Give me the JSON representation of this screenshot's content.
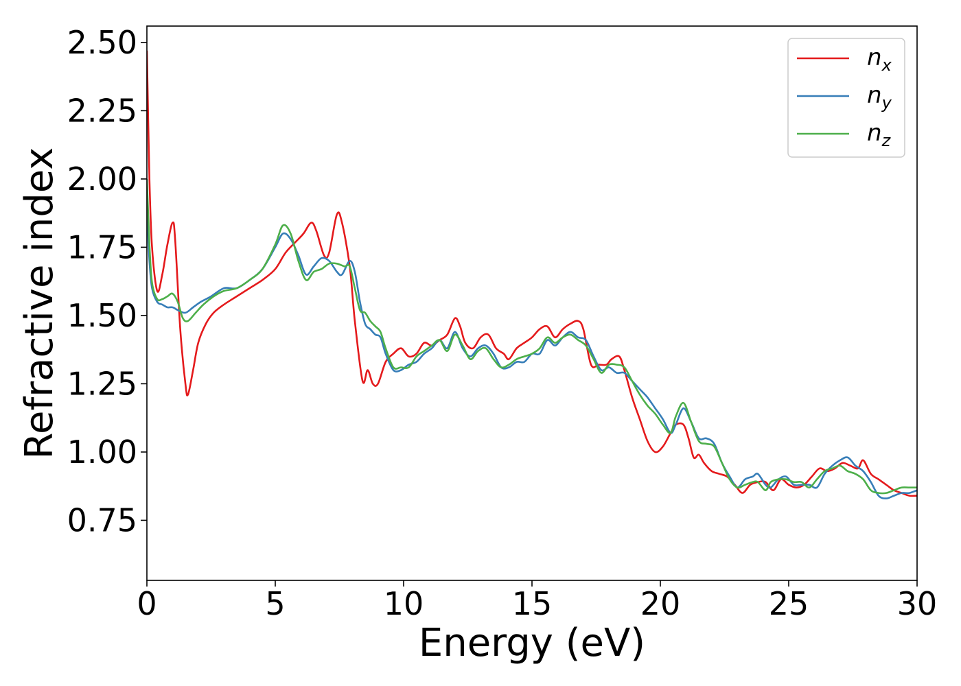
{
  "chart_data": {
    "type": "line",
    "xlabel": "Energy (eV)",
    "ylabel": "Refractive index",
    "xlim": [
      0,
      30
    ],
    "ylim": [
      0.53,
      2.56
    ],
    "xticks": [
      0,
      5,
      10,
      15,
      20,
      25,
      30
    ],
    "xtick_labels": [
      "0",
      "5",
      "10",
      "15",
      "20",
      "25",
      "30"
    ],
    "yticks": [
      0.75,
      1.0,
      1.25,
      1.5,
      1.75,
      2.0,
      2.25,
      2.5
    ],
    "ytick_labels": [
      "0.75",
      "1.00",
      "1.25",
      "1.50",
      "1.75",
      "2.00",
      "2.25",
      "2.50"
    ],
    "grid": false,
    "legend_position": "top-right",
    "series": [
      {
        "name": "n_x",
        "legend_base": "n",
        "legend_sub": "x",
        "color": "#e41a1c",
        "x": [
          0,
          0.1,
          0.2,
          0.4,
          0.6,
          0.8,
          1.0,
          1.1,
          1.3,
          1.5,
          1.6,
          1.8,
          2.0,
          2.3,
          2.6,
          3.0,
          3.5,
          4.0,
          4.5,
          5.0,
          5.4,
          5.8,
          6.1,
          6.4,
          6.6,
          6.9,
          7.1,
          7.4,
          7.6,
          7.9,
          8.1,
          8.4,
          8.6,
          8.8,
          9.0,
          9.3,
          9.6,
          9.9,
          10.2,
          10.5,
          10.8,
          11.1,
          11.4,
          11.7,
          12.0,
          12.2,
          12.4,
          12.7,
          13.0,
          13.3,
          13.6,
          13.9,
          14.1,
          14.4,
          14.7,
          15.0,
          15.3,
          15.6,
          15.9,
          16.2,
          16.5,
          16.8,
          17.0,
          17.3,
          17.6,
          17.9,
          18.1,
          18.4,
          18.6,
          18.9,
          19.2,
          19.5,
          19.8,
          20.1,
          20.4,
          20.6,
          20.9,
          21.1,
          21.3,
          21.5,
          21.7,
          22.0,
          22.3,
          22.6,
          22.9,
          23.2,
          23.5,
          23.8,
          24.1,
          24.4,
          24.7,
          25.0,
          25.3,
          25.6,
          25.9,
          26.2,
          26.5,
          26.8,
          27.1,
          27.4,
          27.7,
          27.9,
          28.2,
          28.5,
          28.8,
          29.1,
          29.4,
          29.7,
          30.0
        ],
        "y": [
          2.47,
          2.0,
          1.75,
          1.59,
          1.65,
          1.76,
          1.84,
          1.78,
          1.45,
          1.25,
          1.21,
          1.3,
          1.4,
          1.47,
          1.51,
          1.54,
          1.57,
          1.6,
          1.63,
          1.67,
          1.73,
          1.77,
          1.8,
          1.84,
          1.81,
          1.72,
          1.73,
          1.87,
          1.84,
          1.68,
          1.48,
          1.26,
          1.3,
          1.25,
          1.25,
          1.33,
          1.36,
          1.38,
          1.35,
          1.36,
          1.4,
          1.39,
          1.41,
          1.43,
          1.49,
          1.46,
          1.4,
          1.38,
          1.42,
          1.43,
          1.38,
          1.36,
          1.34,
          1.38,
          1.4,
          1.42,
          1.45,
          1.46,
          1.42,
          1.45,
          1.47,
          1.48,
          1.45,
          1.32,
          1.32,
          1.32,
          1.34,
          1.35,
          1.3,
          1.2,
          1.12,
          1.04,
          1.0,
          1.02,
          1.07,
          1.1,
          1.1,
          1.05,
          0.98,
          0.99,
          0.96,
          0.93,
          0.92,
          0.91,
          0.88,
          0.85,
          0.88,
          0.89,
          0.89,
          0.86,
          0.9,
          0.88,
          0.87,
          0.88,
          0.91,
          0.94,
          0.93,
          0.94,
          0.96,
          0.95,
          0.94,
          0.97,
          0.92,
          0.9,
          0.88,
          0.86,
          0.85,
          0.84,
          0.84
        ]
      },
      {
        "name": "n_y",
        "legend_base": "n",
        "legend_sub": "y",
        "color": "#377eb8",
        "x": [
          0,
          0.1,
          0.2,
          0.4,
          0.6,
          0.8,
          1.0,
          1.2,
          1.5,
          1.8,
          2.1,
          2.5,
          3.0,
          3.5,
          4.0,
          4.5,
          5.0,
          5.3,
          5.6,
          5.9,
          6.2,
          6.5,
          6.8,
          7.1,
          7.4,
          7.6,
          7.9,
          8.1,
          8.3,
          8.5,
          8.7,
          8.9,
          9.1,
          9.3,
          9.6,
          9.9,
          10.2,
          10.5,
          10.8,
          11.1,
          11.4,
          11.7,
          12.0,
          12.3,
          12.6,
          12.9,
          13.2,
          13.5,
          13.8,
          14.1,
          14.4,
          14.7,
          15.0,
          15.3,
          15.6,
          15.9,
          16.2,
          16.5,
          16.8,
          17.1,
          17.4,
          17.7,
          18.0,
          18.3,
          18.6,
          18.9,
          19.2,
          19.5,
          19.8,
          20.1,
          20.4,
          20.6,
          20.9,
          21.2,
          21.5,
          21.8,
          22.1,
          22.4,
          22.7,
          23.0,
          23.3,
          23.6,
          23.8,
          24.1,
          24.3,
          24.6,
          24.9,
          25.2,
          25.5,
          25.8,
          26.1,
          26.4,
          26.7,
          27.0,
          27.3,
          27.6,
          27.9,
          28.2,
          28.5,
          28.8,
          29.1,
          29.4,
          29.7,
          30.0
        ],
        "y": [
          1.9,
          1.7,
          1.6,
          1.55,
          1.54,
          1.53,
          1.53,
          1.52,
          1.51,
          1.53,
          1.55,
          1.57,
          1.6,
          1.6,
          1.63,
          1.67,
          1.75,
          1.8,
          1.78,
          1.72,
          1.65,
          1.68,
          1.71,
          1.7,
          1.66,
          1.65,
          1.7,
          1.66,
          1.55,
          1.47,
          1.45,
          1.43,
          1.42,
          1.36,
          1.3,
          1.3,
          1.32,
          1.33,
          1.36,
          1.38,
          1.41,
          1.38,
          1.44,
          1.38,
          1.35,
          1.38,
          1.39,
          1.36,
          1.31,
          1.31,
          1.33,
          1.33,
          1.36,
          1.36,
          1.41,
          1.39,
          1.42,
          1.44,
          1.42,
          1.41,
          1.35,
          1.3,
          1.31,
          1.29,
          1.29,
          1.26,
          1.23,
          1.2,
          1.16,
          1.12,
          1.07,
          1.1,
          1.16,
          1.11,
          1.05,
          1.05,
          1.03,
          0.96,
          0.91,
          0.87,
          0.9,
          0.91,
          0.92,
          0.88,
          0.87,
          0.9,
          0.91,
          0.88,
          0.88,
          0.88,
          0.87,
          0.92,
          0.95,
          0.97,
          0.98,
          0.95,
          0.93,
          0.89,
          0.84,
          0.83,
          0.84,
          0.85,
          0.85,
          0.86
        ]
      },
      {
        "name": "n_z",
        "legend_base": "n",
        "legend_sub": "z",
        "color": "#4daf4a",
        "x": [
          0,
          0.1,
          0.2,
          0.4,
          0.6,
          0.8,
          1.0,
          1.2,
          1.4,
          1.6,
          1.9,
          2.2,
          2.6,
          3.0,
          3.5,
          4.0,
          4.5,
          5.0,
          5.3,
          5.6,
          5.9,
          6.2,
          6.5,
          6.8,
          7.1,
          7.4,
          7.7,
          7.9,
          8.1,
          8.3,
          8.5,
          8.7,
          8.9,
          9.1,
          9.3,
          9.6,
          9.9,
          10.2,
          10.5,
          10.8,
          11.1,
          11.4,
          11.7,
          12.0,
          12.3,
          12.6,
          12.9,
          13.2,
          13.5,
          13.8,
          14.1,
          14.4,
          14.7,
          15.0,
          15.3,
          15.6,
          15.9,
          16.2,
          16.5,
          16.8,
          17.1,
          17.4,
          17.7,
          18.0,
          18.3,
          18.6,
          18.9,
          19.2,
          19.5,
          19.8,
          20.1,
          20.4,
          20.6,
          20.9,
          21.2,
          21.5,
          21.8,
          22.1,
          22.4,
          22.7,
          23.0,
          23.3,
          23.6,
          23.8,
          24.1,
          24.3,
          24.6,
          24.9,
          25.2,
          25.5,
          25.8,
          26.1,
          26.4,
          26.7,
          27.0,
          27.3,
          27.6,
          27.9,
          28.2,
          28.5,
          28.8,
          29.1,
          29.4,
          29.7,
          30.0
        ],
        "y": [
          2.0,
          1.76,
          1.62,
          1.56,
          1.56,
          1.57,
          1.58,
          1.55,
          1.49,
          1.48,
          1.51,
          1.54,
          1.57,
          1.59,
          1.6,
          1.63,
          1.67,
          1.76,
          1.83,
          1.8,
          1.7,
          1.63,
          1.66,
          1.67,
          1.69,
          1.69,
          1.68,
          1.68,
          1.6,
          1.52,
          1.51,
          1.48,
          1.46,
          1.44,
          1.38,
          1.31,
          1.31,
          1.31,
          1.35,
          1.37,
          1.39,
          1.41,
          1.37,
          1.43,
          1.39,
          1.34,
          1.37,
          1.38,
          1.34,
          1.31,
          1.32,
          1.34,
          1.35,
          1.36,
          1.38,
          1.42,
          1.4,
          1.42,
          1.43,
          1.41,
          1.39,
          1.34,
          1.29,
          1.32,
          1.32,
          1.31,
          1.26,
          1.21,
          1.17,
          1.14,
          1.1,
          1.07,
          1.13,
          1.18,
          1.11,
          1.04,
          1.03,
          1.02,
          0.96,
          0.9,
          0.87,
          0.88,
          0.89,
          0.89,
          0.86,
          0.89,
          0.9,
          0.9,
          0.89,
          0.89,
          0.87,
          0.9,
          0.93,
          0.94,
          0.95,
          0.93,
          0.92,
          0.9,
          0.86,
          0.85,
          0.85,
          0.86,
          0.87,
          0.87,
          0.87
        ]
      }
    ]
  }
}
